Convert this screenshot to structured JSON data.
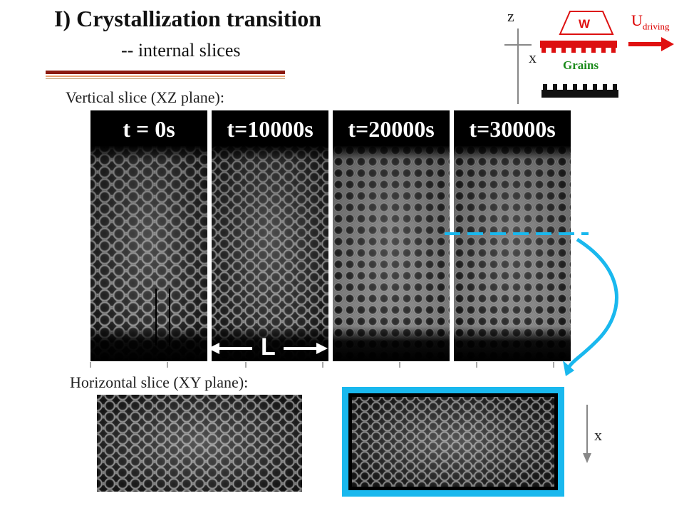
{
  "header": {
    "title": "I) Crystallization transition",
    "subtitle": "-- internal slices"
  },
  "sections": {
    "vertical_label": "Vertical slice (XZ plane):",
    "horizontal_label": "Horizontal slice (XY plane):"
  },
  "strips": [
    {
      "label": "t = 0s"
    },
    {
      "label": "t=10000s"
    },
    {
      "label": "t=20000s"
    },
    {
      "label": "t=30000s"
    }
  ],
  "width_marker": "L",
  "diagram": {
    "axis_z": "z",
    "axis_x": "x",
    "wall_label": "W",
    "grains_label": "Grains",
    "driving_label": "U",
    "driving_sub": "driving"
  },
  "bottom_axis": "x",
  "colors": {
    "accent_cyan": "#19b8ee",
    "driving_red": "#e01010",
    "grains_green": "#1a8a1a",
    "title_rule": "#8b1a10"
  }
}
